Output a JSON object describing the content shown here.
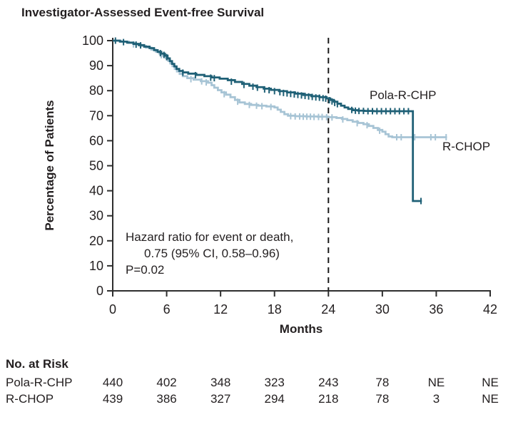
{
  "title": "Investigator-Assessed Event-free Survival",
  "colors": {
    "series_dark": "#1f6076",
    "series_light": "#a7c4d5",
    "text": "#231f20",
    "axis": "#2e2e2e",
    "reference_line": "#1a1a1a"
  },
  "chart_data": {
    "type": "line",
    "subtype": "kaplan-meier-step",
    "title": "Investigator-Assessed Event-free Survival",
    "xlabel": "Months",
    "ylabel": "Percentage of Patients",
    "xlim": [
      0,
      42
    ],
    "ylim": [
      0,
      100
    ],
    "xticks": [
      0,
      6,
      12,
      18,
      24,
      30,
      36,
      42
    ],
    "yticks": [
      100,
      90,
      80,
      70,
      60,
      50,
      40,
      30,
      20,
      10,
      0
    ],
    "grid": false,
    "legend_position": "inline-labels",
    "reference_line_x": 24,
    "annotation": {
      "lines": [
        "Hazard ratio for event or death,",
        "0.75 (95% CI, 0.58–0.96)",
        "P=0.02"
      ]
    },
    "series": [
      {
        "name": "Pola-R-CHP",
        "color": "#1f6076",
        "end_x": 34.4,
        "steps": [
          [
            0,
            100
          ],
          [
            0.8,
            99.6
          ],
          [
            1.6,
            99.2
          ],
          [
            2.3,
            98.7
          ],
          [
            2.9,
            98.2
          ],
          [
            3.5,
            97.6
          ],
          [
            4.1,
            97.0
          ],
          [
            4.6,
            96.2
          ],
          [
            5.0,
            95.5
          ],
          [
            5.4,
            94.8
          ],
          [
            5.8,
            94.0
          ],
          [
            6.1,
            92.9
          ],
          [
            6.35,
            91.8
          ],
          [
            6.6,
            90.7
          ],
          [
            6.85,
            89.7
          ],
          [
            7.1,
            88.7
          ],
          [
            7.4,
            87.9
          ],
          [
            7.8,
            87.3
          ],
          [
            8.4,
            86.8
          ],
          [
            9.3,
            86.3
          ],
          [
            10.2,
            85.8
          ],
          [
            11.0,
            85.3
          ],
          [
            11.9,
            84.8
          ],
          [
            12.8,
            84.2
          ],
          [
            13.6,
            83.5
          ],
          [
            14.4,
            82.7
          ],
          [
            15.2,
            82.0
          ],
          [
            16.0,
            81.4
          ],
          [
            16.8,
            80.8
          ],
          [
            17.6,
            80.3
          ],
          [
            18.5,
            79.8
          ],
          [
            19.4,
            79.3
          ],
          [
            20.3,
            78.8
          ],
          [
            21.2,
            78.3
          ],
          [
            22.1,
            77.8
          ],
          [
            23.0,
            77.4
          ],
          [
            23.8,
            76.9
          ],
          [
            24.2,
            76.3
          ],
          [
            24.6,
            75.6
          ],
          [
            25.0,
            74.8
          ],
          [
            25.4,
            74.0
          ],
          [
            25.8,
            73.3
          ],
          [
            26.2,
            72.7
          ],
          [
            26.7,
            72.2
          ],
          [
            27.3,
            72.0
          ],
          [
            28.0,
            71.9
          ],
          [
            29.0,
            71.8
          ],
          [
            33.4,
            35.9
          ]
        ],
        "censors": [
          [
            0.3,
            100
          ],
          [
            1.2,
            99.4
          ],
          [
            2.6,
            98.4
          ],
          [
            3.1,
            98.1
          ],
          [
            5.3,
            95.0
          ],
          [
            5.7,
            94.3
          ],
          [
            6.0,
            93.4
          ],
          [
            7.8,
            87.2
          ],
          [
            9.2,
            86.2
          ],
          [
            10.9,
            85.2
          ],
          [
            11.3,
            85.0
          ],
          [
            13.2,
            83.6
          ],
          [
            14.6,
            82.3
          ],
          [
            15.6,
            81.6
          ],
          [
            16.1,
            81.2
          ],
          [
            16.9,
            80.5
          ],
          [
            17.4,
            80.2
          ],
          [
            18.0,
            79.8
          ],
          [
            18.6,
            79.4
          ],
          [
            19.0,
            79.1
          ],
          [
            19.4,
            78.9
          ],
          [
            19.8,
            78.7
          ],
          [
            20.2,
            78.5
          ],
          [
            20.6,
            78.3
          ],
          [
            21.0,
            78.1
          ],
          [
            21.4,
            77.9
          ],
          [
            21.8,
            77.7
          ],
          [
            22.2,
            77.5
          ],
          [
            22.6,
            77.3
          ],
          [
            23.0,
            77.2
          ],
          [
            23.4,
            77.0
          ],
          [
            23.7,
            76.8
          ],
          [
            24.1,
            76.2
          ],
          [
            24.4,
            75.7
          ],
          [
            24.7,
            75.1
          ],
          [
            25.0,
            74.6
          ],
          [
            26.6,
            72.3
          ],
          [
            27.0,
            72.0
          ],
          [
            27.4,
            71.9
          ],
          [
            27.9,
            71.9
          ],
          [
            28.4,
            71.8
          ],
          [
            28.9,
            71.8
          ],
          [
            29.4,
            71.8
          ],
          [
            29.9,
            71.8
          ],
          [
            30.4,
            71.8
          ],
          [
            30.9,
            71.8
          ],
          [
            31.4,
            71.8
          ],
          [
            31.9,
            71.8
          ],
          [
            32.4,
            71.8
          ],
          [
            32.9,
            71.8
          ],
          [
            34.3,
            35.9
          ]
        ]
      },
      {
        "name": "R-CHOP",
        "color": "#a7c4d5",
        "end_x": 37.2,
        "steps": [
          [
            0,
            100
          ],
          [
            0.9,
            99.6
          ],
          [
            1.8,
            99.1
          ],
          [
            2.5,
            98.5
          ],
          [
            3.1,
            97.9
          ],
          [
            3.7,
            97.2
          ],
          [
            4.3,
            96.4
          ],
          [
            4.8,
            95.6
          ],
          [
            5.2,
            94.8
          ],
          [
            5.6,
            94.0
          ],
          [
            5.9,
            93.1
          ],
          [
            6.15,
            92.0
          ],
          [
            6.4,
            90.9
          ],
          [
            6.65,
            89.8
          ],
          [
            6.9,
            88.7
          ],
          [
            7.15,
            87.7
          ],
          [
            7.45,
            86.7
          ],
          [
            7.8,
            85.8
          ],
          [
            8.3,
            85.0
          ],
          [
            9.0,
            84.4
          ],
          [
            9.8,
            83.8
          ],
          [
            10.6,
            83.2
          ],
          [
            11.0,
            82.2
          ],
          [
            11.3,
            81.2
          ],
          [
            11.7,
            80.2
          ],
          [
            12.1,
            79.3
          ],
          [
            12.6,
            78.4
          ],
          [
            13.1,
            77.4
          ],
          [
            13.6,
            76.3
          ],
          [
            14.1,
            75.3
          ],
          [
            14.7,
            74.7
          ],
          [
            15.4,
            74.3
          ],
          [
            16.2,
            74.0
          ],
          [
            17.1,
            73.7
          ],
          [
            18.0,
            73.3
          ],
          [
            18.35,
            72.4
          ],
          [
            18.7,
            71.5
          ],
          [
            19.1,
            70.6
          ],
          [
            19.5,
            70.0
          ],
          [
            20.3,
            69.8
          ],
          [
            21.5,
            69.7
          ],
          [
            22.8,
            69.6
          ],
          [
            24.0,
            69.4
          ],
          [
            24.9,
            69.1
          ],
          [
            25.5,
            68.7
          ],
          [
            26.1,
            68.2
          ],
          [
            26.7,
            67.6
          ],
          [
            27.3,
            67.1
          ],
          [
            27.9,
            66.6
          ],
          [
            28.5,
            65.9
          ],
          [
            29.0,
            65.1
          ],
          [
            29.5,
            64.3
          ],
          [
            30.0,
            63.6
          ],
          [
            30.35,
            62.6
          ],
          [
            30.7,
            61.7
          ],
          [
            31.1,
            61.4
          ]
        ],
        "censors": [
          [
            2.3,
            98.5
          ],
          [
            5.4,
            94.2
          ],
          [
            8.7,
            84.6
          ],
          [
            9.9,
            83.7
          ],
          [
            10.4,
            83.3
          ],
          [
            12.4,
            78.6
          ],
          [
            13.9,
            75.6
          ],
          [
            15.2,
            74.3
          ],
          [
            16.0,
            74.0
          ],
          [
            16.6,
            73.8
          ],
          [
            17.6,
            73.5
          ],
          [
            19.8,
            69.8
          ],
          [
            20.3,
            69.7
          ],
          [
            20.8,
            69.7
          ],
          [
            21.2,
            69.6
          ],
          [
            21.6,
            69.6
          ],
          [
            22.0,
            69.6
          ],
          [
            22.4,
            69.5
          ],
          [
            22.9,
            69.5
          ],
          [
            23.3,
            69.5
          ],
          [
            23.8,
            69.4
          ],
          [
            24.4,
            69.3
          ],
          [
            25.6,
            68.5
          ],
          [
            27.2,
            67.0
          ],
          [
            28.3,
            66.2
          ],
          [
            29.7,
            64.0
          ],
          [
            31.6,
            61.4
          ],
          [
            32.1,
            61.4
          ],
          [
            33.6,
            61.4
          ],
          [
            35.4,
            61.4
          ],
          [
            35.9,
            61.4
          ],
          [
            37.1,
            61.4
          ]
        ]
      }
    ]
  },
  "risk_table": {
    "heading": "No. at Risk",
    "columns_months": [
      0,
      6,
      12,
      18,
      24,
      30,
      36,
      42
    ],
    "rows": [
      {
        "label": "Pola-R-CHP",
        "values": [
          "440",
          "402",
          "348",
          "323",
          "243",
          "78",
          "NE",
          "NE"
        ]
      },
      {
        "label": "R-CHOP",
        "values": [
          "439",
          "386",
          "327",
          "294",
          "218",
          "78",
          "3",
          "NE"
        ]
      }
    ]
  }
}
